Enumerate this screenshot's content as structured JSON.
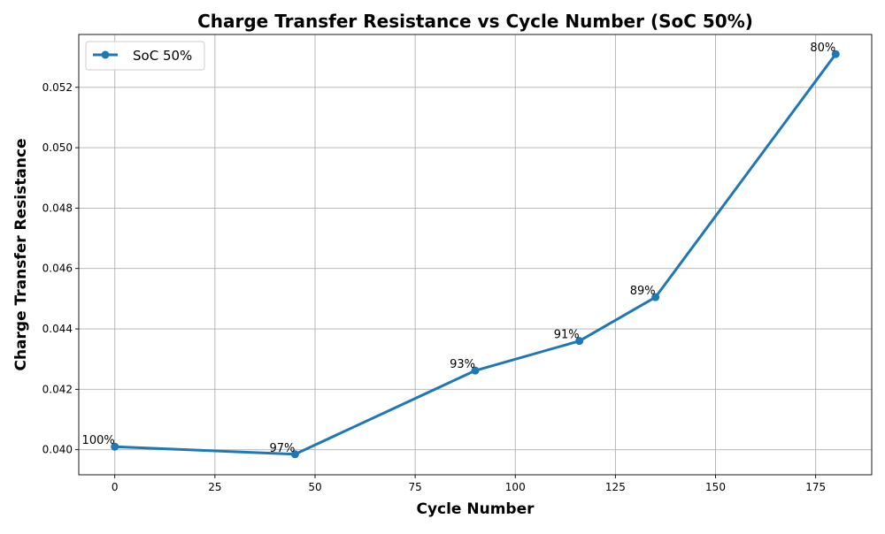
{
  "chart_data": {
    "type": "line",
    "title": "Charge Transfer Resistance vs Cycle Number (SoC 50%)",
    "xlabel": "Cycle Number",
    "ylabel": "Charge Transfer Resistance",
    "xlim": [
      -9,
      189
    ],
    "ylim": [
      0.03917,
      0.05375
    ],
    "x_ticks": [
      0,
      25,
      50,
      75,
      100,
      125,
      150,
      175
    ],
    "x_tick_labels": [
      "0",
      "25",
      "50",
      "75",
      "100",
      "125",
      "150",
      "175"
    ],
    "y_ticks": [
      0.04,
      0.042,
      0.044,
      0.046,
      0.048,
      0.05,
      0.052
    ],
    "y_tick_labels": [
      "0.040",
      "0.042",
      "0.044",
      "0.046",
      "0.048",
      "0.050",
      "0.052"
    ],
    "grid": true,
    "legend_position": "top-left",
    "series": [
      {
        "name": "SoC 50%",
        "color": "#1f77b4",
        "marker": "circle",
        "x": [
          0,
          45,
          90,
          116,
          135,
          180
        ],
        "y": [
          0.0401,
          0.03985,
          0.04262,
          0.0436,
          0.04505,
          0.0531
        ],
        "point_labels": [
          "100%",
          "97%",
          "93%",
          "91%",
          "89%",
          "80%"
        ]
      }
    ]
  }
}
